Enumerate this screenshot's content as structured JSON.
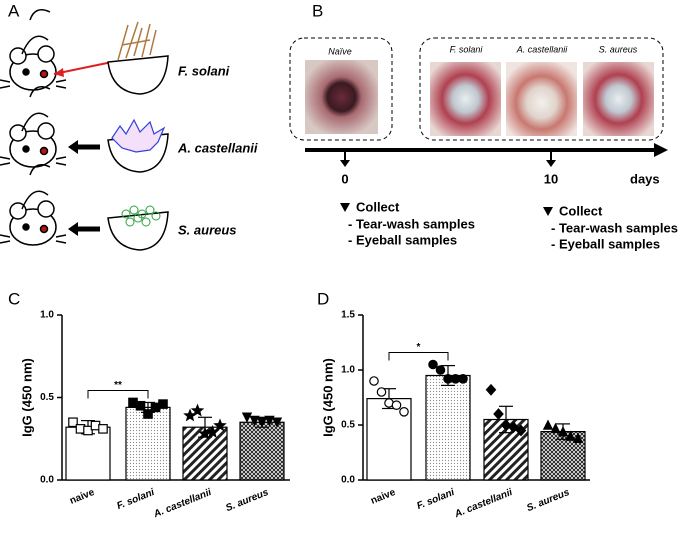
{
  "panel_labels": [
    "A",
    "B",
    "C",
    "D"
  ],
  "figure_a": {
    "pathogens": [
      "F. solani",
      "A. castellanii",
      "S. aureus"
    ]
  },
  "figure_b": {
    "photo_labels": [
      "Naïve",
      "F. solani",
      "A. castellanii",
      "S. aureus"
    ],
    "x": [
      0,
      10
    ],
    "x_unit": "days",
    "samples": [
      {
        "heading": "Collect",
        "items": [
          "- Tear-wash samples",
          "- Eyeball samples"
        ]
      },
      {
        "heading": "Collect",
        "items": [
          "- Tear-wash samples",
          "- Eyeball samples"
        ]
      }
    ]
  },
  "chart_data": [
    {
      "type": "bar",
      "ylabel": "IgG (450 nm)",
      "categories": [
        "naive",
        "F. solani",
        "A. castellanii",
        "S. aureus"
      ],
      "values": [
        0.32,
        0.44,
        0.32,
        0.35
      ],
      "errors": [
        0.04,
        0.03,
        0.06,
        0.03
      ],
      "points": [
        [
          0.35,
          0.31,
          0.3,
          0.33,
          0.31
        ],
        [
          0.47,
          0.45,
          0.4,
          0.44,
          0.46
        ],
        [
          0.39,
          0.42,
          0.28,
          0.29,
          0.33
        ],
        [
          0.38,
          0.36,
          0.35,
          0.36,
          0.35
        ]
      ],
      "ylim": [
        0,
        1
      ],
      "yticks": [
        {
          "value": 0,
          "label": "0.0"
        },
        0.5,
        {
          "value": 1,
          "label": "1.0"
        }
      ],
      "significance": "**"
    },
    {
      "type": "bar",
      "ylabel": "IgG (450 nm)",
      "categories": [
        "naive",
        "F. solani",
        "A. castellanii",
        "S. aureus"
      ],
      "values": [
        0.74,
        0.95,
        0.55,
        0.44
      ],
      "errors": [
        0.09,
        0.09,
        0.12,
        0.07
      ],
      "points": [
        [
          0.9,
          0.8,
          0.7,
          0.68,
          0.62
        ],
        [
          1.05,
          1.0,
          0.92,
          0.92,
          0.92
        ],
        [
          0.82,
          0.6,
          0.5,
          0.48,
          0.45
        ],
        [
          0.5,
          0.47,
          0.44,
          0.4,
          0.38
        ]
      ],
      "ylim": [
        0,
        1.5
      ],
      "yticks": [
        {
          "value": 0,
          "label": "0.0"
        },
        0.5,
        {
          "value": 1,
          "label": "1.0"
        },
        1.5
      ],
      "significance": "*"
    }
  ]
}
